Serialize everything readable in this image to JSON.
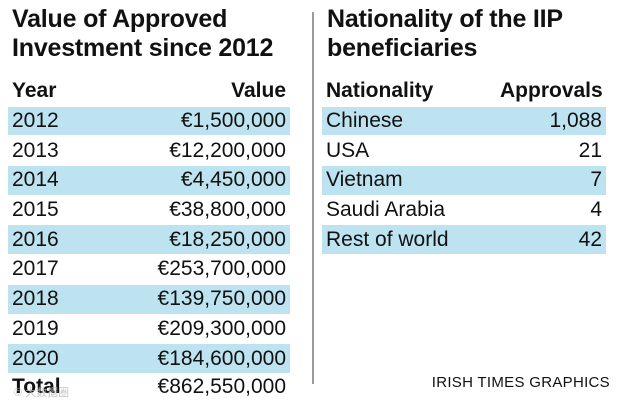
{
  "chart_data": [
    {
      "type": "table",
      "title": "Value of Approved Investment since 2012",
      "columns": [
        "Year",
        "Value"
      ],
      "rows": [
        {
          "year": "2012",
          "value": "€1,500,000"
        },
        {
          "year": "2013",
          "value": "€12,200,000"
        },
        {
          "year": "2014",
          "value": "€4,450,000"
        },
        {
          "year": "2015",
          "value": "€38,800,000"
        },
        {
          "year": "2016",
          "value": "€18,250,000"
        },
        {
          "year": "2017",
          "value": "€253,700,000"
        },
        {
          "year": "2018",
          "value": "€139,750,000"
        },
        {
          "year": "2019",
          "value": "€209,300,000"
        },
        {
          "year": "2020",
          "value": "€184,600,000"
        }
      ],
      "total": {
        "label": "Total",
        "value": "€862,550,000"
      }
    },
    {
      "type": "table",
      "title": "Nationality of the IIP beneficiaries",
      "columns": [
        "Nationality",
        "Approvals"
      ],
      "rows": [
        {
          "nationality": "Chinese",
          "approvals": "1,088"
        },
        {
          "nationality": "USA",
          "approvals": "21"
        },
        {
          "nationality": "Vietnam",
          "approvals": "7"
        },
        {
          "nationality": "Saudi Arabia",
          "approvals": "4"
        },
        {
          "nationality": "Rest of world",
          "approvals": "42"
        }
      ]
    }
  ],
  "credit": "IRISH TIMES GRAPHICS",
  "watermark": "© 大数据圈",
  "colors": {
    "row_shade": "#bde3f1",
    "text": "#111111",
    "divider": "#9a9a9a"
  }
}
